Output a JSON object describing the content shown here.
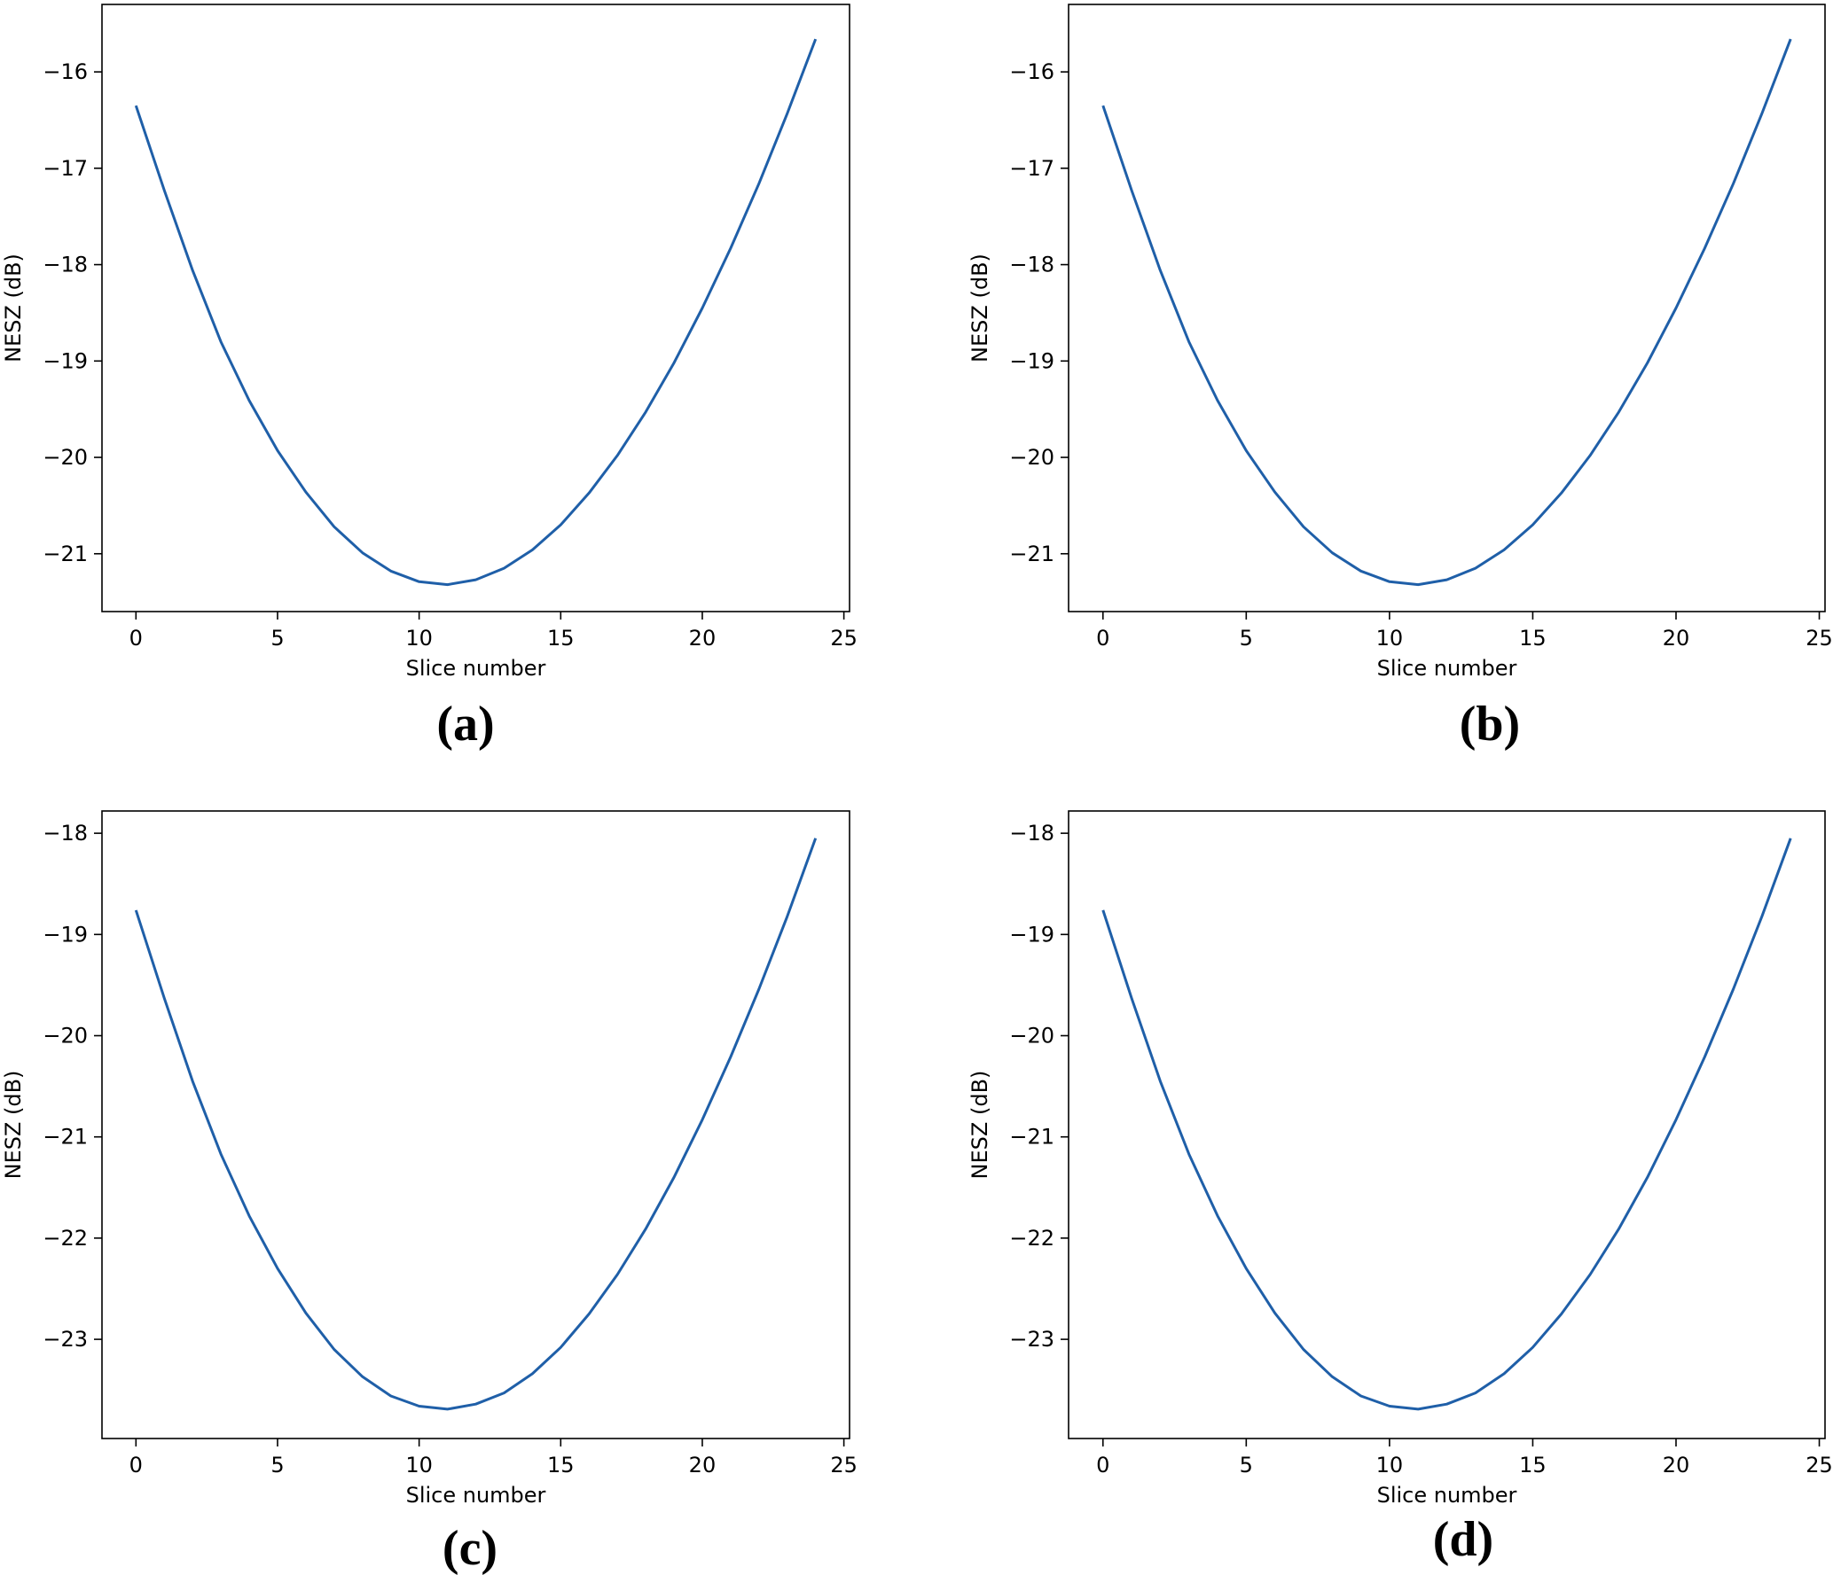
{
  "figure": {
    "panel_labels": [
      "(a)",
      "(b)",
      "(c)",
      "(d)"
    ]
  },
  "style": {
    "line_color": "#1f5fa8",
    "axes_color": "#000000"
  },
  "chart_data": [
    {
      "type": "line",
      "panel_label": "(a)",
      "xlabel": "Slice number",
      "ylabel": "NESZ (dB)",
      "xlim": [
        -1.2,
        25.2
      ],
      "ylim": [
        -21.6,
        -15.3
      ],
      "xticks": [
        0,
        5,
        10,
        15,
        20,
        25
      ],
      "yticks": [
        -16,
        -17,
        -18,
        -19,
        -20,
        -21
      ],
      "x": [
        0,
        1,
        2,
        3,
        4,
        5,
        6,
        7,
        8,
        9,
        10,
        11,
        12,
        13,
        14,
        15,
        16,
        17,
        18,
        19,
        20,
        21,
        22,
        23,
        24
      ],
      "series": [
        {
          "values": [
            -16.35,
            -17.23,
            -18.06,
            -18.8,
            -19.41,
            -19.93,
            -20.36,
            -20.72,
            -20.99,
            -21.18,
            -21.29,
            -21.32,
            -21.27,
            -21.15,
            -20.96,
            -20.7,
            -20.37,
            -19.98,
            -19.53,
            -19.02,
            -18.45,
            -17.83,
            -17.16,
            -16.43,
            -15.66
          ]
        }
      ]
    },
    {
      "type": "line",
      "panel_label": "(b)",
      "xlabel": "Slice number",
      "ylabel": "NESZ (dB)",
      "xlim": [
        -1.2,
        25.2
      ],
      "ylim": [
        -21.6,
        -15.3
      ],
      "xticks": [
        0,
        5,
        10,
        15,
        20,
        25
      ],
      "yticks": [
        -16,
        -17,
        -18,
        -19,
        -20,
        -21
      ],
      "x": [
        0,
        1,
        2,
        3,
        4,
        5,
        6,
        7,
        8,
        9,
        10,
        11,
        12,
        13,
        14,
        15,
        16,
        17,
        18,
        19,
        20,
        21,
        22,
        23,
        24
      ],
      "series": [
        {
          "values": [
            -16.35,
            -17.23,
            -18.06,
            -18.8,
            -19.41,
            -19.93,
            -20.36,
            -20.72,
            -20.99,
            -21.18,
            -21.29,
            -21.32,
            -21.27,
            -21.15,
            -20.96,
            -20.7,
            -20.37,
            -19.98,
            -19.53,
            -19.02,
            -18.45,
            -17.83,
            -17.16,
            -16.43,
            -15.66
          ]
        }
      ]
    },
    {
      "type": "line",
      "panel_label": "(c)",
      "xlabel": "Slice number",
      "ylabel": "NESZ (dB)",
      "xlim": [
        -1.2,
        25.2
      ],
      "ylim": [
        -23.98,
        -17.78
      ],
      "xticks": [
        0,
        5,
        10,
        15,
        20,
        25
      ],
      "yticks": [
        -18,
        -19,
        -20,
        -21,
        -22,
        -23
      ],
      "x": [
        0,
        1,
        2,
        3,
        4,
        5,
        6,
        7,
        8,
        9,
        10,
        11,
        12,
        13,
        14,
        15,
        16,
        17,
        18,
        19,
        20,
        21,
        22,
        23,
        24
      ],
      "series": [
        {
          "values": [
            -18.76,
            -19.63,
            -20.45,
            -21.17,
            -21.78,
            -22.3,
            -22.74,
            -23.1,
            -23.37,
            -23.56,
            -23.66,
            -23.69,
            -23.64,
            -23.53,
            -23.34,
            -23.08,
            -22.75,
            -22.36,
            -21.91,
            -21.4,
            -20.83,
            -20.21,
            -19.54,
            -18.82,
            -18.05
          ]
        }
      ]
    },
    {
      "type": "line",
      "panel_label": "(d)",
      "xlabel": "Slice number",
      "ylabel": "NESZ (dB)",
      "xlim": [
        -1.2,
        25.2
      ],
      "ylim": [
        -23.98,
        -17.78
      ],
      "xticks": [
        0,
        5,
        10,
        15,
        20,
        25
      ],
      "yticks": [
        -18,
        -19,
        -20,
        -21,
        -22,
        -23
      ],
      "x": [
        0,
        1,
        2,
        3,
        4,
        5,
        6,
        7,
        8,
        9,
        10,
        11,
        12,
        13,
        14,
        15,
        16,
        17,
        18,
        19,
        20,
        21,
        22,
        23,
        24
      ],
      "series": [
        {
          "values": [
            -18.76,
            -19.63,
            -20.45,
            -21.17,
            -21.78,
            -22.3,
            -22.74,
            -23.1,
            -23.37,
            -23.56,
            -23.66,
            -23.69,
            -23.64,
            -23.53,
            -23.34,
            -23.08,
            -22.75,
            -22.36,
            -21.91,
            -21.4,
            -20.83,
            -20.21,
            -19.54,
            -18.82,
            -18.05
          ]
        }
      ]
    }
  ]
}
